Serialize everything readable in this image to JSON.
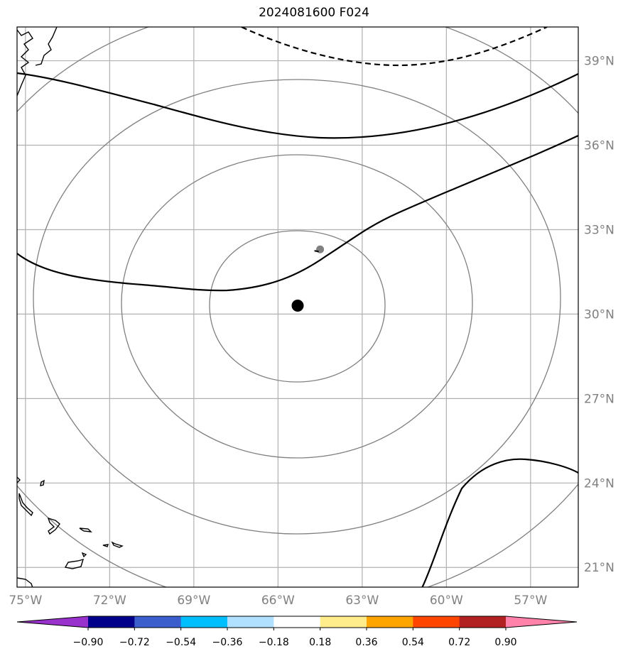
{
  "title": "2024081600 F024",
  "map": {
    "extent": {
      "lon_min": -75.3,
      "lon_max": -55.3,
      "lat_min": 20.3,
      "lat_max": 40.2
    },
    "lon_ticks": [
      -75,
      -72,
      -69,
      -66,
      -63,
      -60,
      -57
    ],
    "lon_labels": [
      "75°W",
      "72°W",
      "69°W",
      "66°W",
      "63°W",
      "60°W",
      "57°W"
    ],
    "lat_ticks": [
      21,
      24,
      27,
      30,
      33,
      36,
      39
    ],
    "lat_labels": [
      "21°N",
      "24°N",
      "27°N",
      "30°N",
      "33°N",
      "36°N",
      "39°N"
    ],
    "storm_center": {
      "lon": -65.3,
      "lat": 30.3,
      "color": "#000000"
    },
    "secondary_point": {
      "lon": -64.5,
      "lat": 32.3,
      "color": "#808080"
    },
    "range_rings_color": "#808080",
    "gridline_color": "#b0b0b0",
    "coastline_color": "#000000"
  },
  "colorbar": {
    "ticks": [
      "−0.90",
      "−0.72",
      "−0.54",
      "−0.36",
      "−0.18",
      "0.18",
      "0.36",
      "0.54",
      "0.72",
      "0.90"
    ],
    "colors": [
      "#9932cc",
      "#00008b",
      "#3a5fcd",
      "#00bfff",
      "#b0e2ff",
      "#ffffff",
      "#ffec8b",
      "#ffa500",
      "#ff4500",
      "#b22222",
      "#ff82ab"
    ]
  }
}
